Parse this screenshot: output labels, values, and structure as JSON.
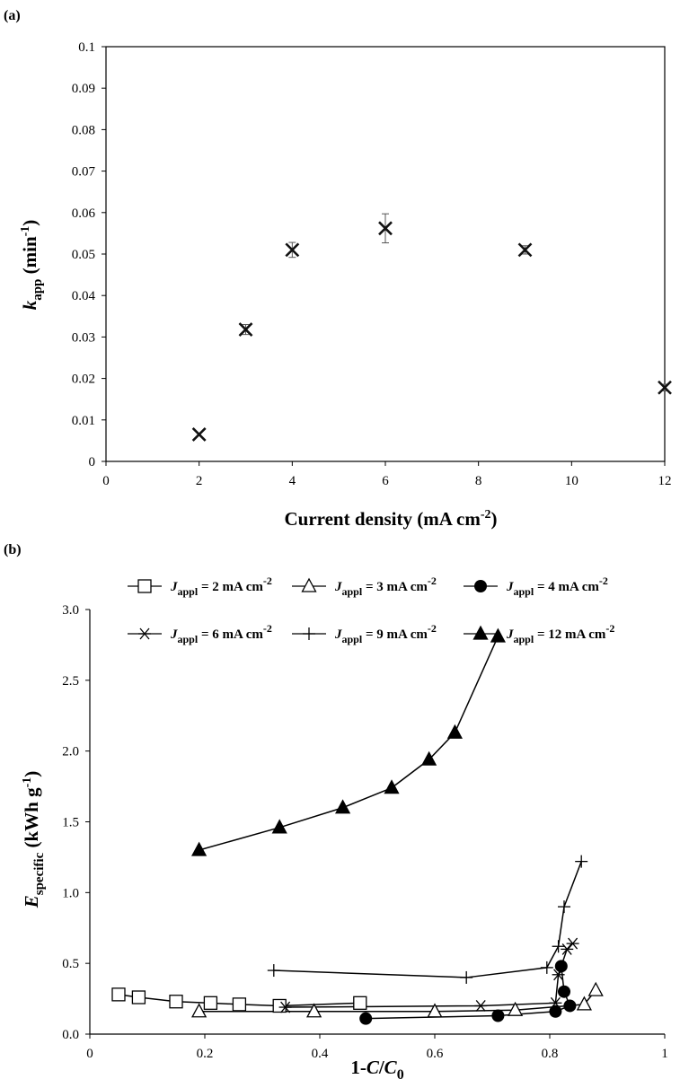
{
  "chart_data": [
    {
      "panel_label": "(a)",
      "type": "scatter",
      "marker": "x",
      "x": [
        2,
        3,
        4,
        6,
        9,
        12
      ],
      "y": [
        0.0065,
        0.0318,
        0.051,
        0.0562,
        0.051,
        0.0178
      ],
      "error": [
        0.0,
        0.0012,
        0.0018,
        0.0035,
        0.001,
        0.0008
      ],
      "xlim": [
        0,
        12
      ],
      "ylim": [
        0,
        0.1
      ],
      "xticks": [
        "0",
        "2",
        "4",
        "6",
        "8",
        "10",
        "12"
      ],
      "yticks": [
        "0",
        "0.01",
        "0.02",
        "0.03",
        "0.04",
        "0.05",
        "0.06",
        "0.07",
        "0.08",
        "0.09",
        "0.1"
      ],
      "xlabel": "Current density (mA cm",
      "xlabel_sup": "-2",
      "xlabel_end": ")",
      "ylabel_main": "k",
      "ylabel_sub": "app",
      "ylabel_rest": " (min",
      "ylabel_sup": "-1",
      "ylabel_end": ")",
      "grid": false
    },
    {
      "panel_label": "(b)",
      "type": "line",
      "xlim": [
        0,
        1
      ],
      "ylim": [
        0,
        3.0
      ],
      "xticks": [
        "0",
        "0.2",
        "0.4",
        "0.6",
        "0.8",
        "1"
      ],
      "yticks": [
        "0.0",
        "0.5",
        "1.0",
        "1.5",
        "2.0",
        "2.5",
        "3.0"
      ],
      "xlabel_main": "1-",
      "xlabel_c": "C",
      "xlabel_slash": "/",
      "xlabel_c0": "C",
      "xlabel_sub": "0",
      "ylabel_main": "E",
      "ylabel_sub": "specific",
      "ylabel_rest": " (kWh g",
      "ylabel_sup": "-1",
      "ylabel_end": ")",
      "legend_placement": "top",
      "grid": false,
      "series": [
        {
          "name": "J",
          "name_sub": "appl",
          "name_rest": " = 2 mA cm",
          "name_sup": "-2",
          "marker": "square-open",
          "x": [
            0.05,
            0.085,
            0.15,
            0.21,
            0.26,
            0.33,
            0.47
          ],
          "y": [
            0.28,
            0.26,
            0.23,
            0.22,
            0.21,
            0.2,
            0.22
          ]
        },
        {
          "name": "J",
          "name_sub": "appl",
          "name_rest": " = 3 mA cm",
          "name_sup": "-2",
          "marker": "triangle-open",
          "x": [
            0.19,
            0.39,
            0.6,
            0.74,
            0.86,
            0.88
          ],
          "y": [
            0.16,
            0.16,
            0.16,
            0.17,
            0.21,
            0.31
          ]
        },
        {
          "name": "J",
          "name_sub": "appl",
          "name_rest": " = 4 mA cm",
          "name_sup": "-2",
          "marker": "circle-filled",
          "x": [
            0.48,
            0.71,
            0.81,
            0.835,
            0.825,
            0.82
          ],
          "y": [
            0.11,
            0.13,
            0.16,
            0.2,
            0.3,
            0.48
          ]
        },
        {
          "name": "J",
          "name_sub": "appl",
          "name_rest": " = 6 mA cm",
          "name_sup": "-2",
          "marker": "asterisk",
          "x": [
            0.34,
            0.68,
            0.81,
            0.815,
            0.83,
            0.84
          ],
          "y": [
            0.19,
            0.2,
            0.22,
            0.42,
            0.6,
            0.64
          ]
        },
        {
          "name": "J",
          "name_sub": "appl",
          "name_rest": " = 9 mA cm",
          "name_sup": "-2",
          "marker": "plus",
          "x": [
            0.32,
            0.655,
            0.795,
            0.815,
            0.825,
            0.855
          ],
          "y": [
            0.45,
            0.4,
            0.47,
            0.62,
            0.9,
            1.22
          ]
        },
        {
          "name": "J",
          "name_sub": "appl",
          "name_rest": " = 12 mA cm",
          "name_sup": "-2",
          "marker": "triangle-filled",
          "x": [
            0.19,
            0.33,
            0.44,
            0.525,
            0.59,
            0.635,
            0.71
          ],
          "y": [
            1.3,
            1.46,
            1.6,
            1.74,
            1.94,
            2.13,
            2.81
          ]
        }
      ]
    }
  ]
}
